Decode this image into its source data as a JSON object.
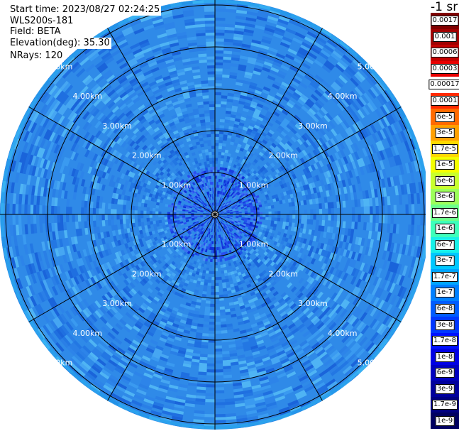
{
  "info": {
    "start_time": "Start time: 2023/08/27 02:24:25",
    "site": "WLS200s-181",
    "field": "Field: BETA",
    "elevation": "Elevation(deg): 35.30",
    "nrays": "NRays: 120"
  },
  "ring_labels": [
    "1.00km",
    "2.00km",
    "3.00km",
    "4.00km",
    "5.00km"
  ],
  "colorbar": {
    "unit_label": "-1 sr",
    "labels": [
      "0.0017",
      "0.001",
      "0.0006",
      "0.0003",
      "0.00017",
      "0.0001",
      "6e-5",
      "3e-5",
      "1.7e-5",
      "1e-5",
      "6e-6",
      "3e-6",
      "1.7e-6",
      "1e-6",
      "6e-7",
      "3e-7",
      "1.7e-7",
      "1e-7",
      "6e-8",
      "3e-8",
      "1.7e-8",
      "1e-8",
      "6e-9",
      "3e-9",
      "1.7e-9",
      "1e-9"
    ],
    "colors": [
      "#800000",
      "#a00000",
      "#c40000",
      "#e80000",
      "#ffffff",
      "#ff2a00",
      "#ff6a00",
      "#ffa000",
      "#ffd800",
      "#f4ff00",
      "#c8ff2e",
      "#9cff5a",
      "#6cff8a",
      "#3effba",
      "#18f0e8",
      "#00c8ff",
      "#00a4ff",
      "#0080ff",
      "#005cff",
      "#0038ff",
      "#0010ff",
      "#0000e4",
      "#0000c0",
      "#00009c",
      "#000080",
      "#000060"
    ]
  },
  "colors": {
    "base_field": "#2f8ae8",
    "range_rings": "#000000"
  }
}
